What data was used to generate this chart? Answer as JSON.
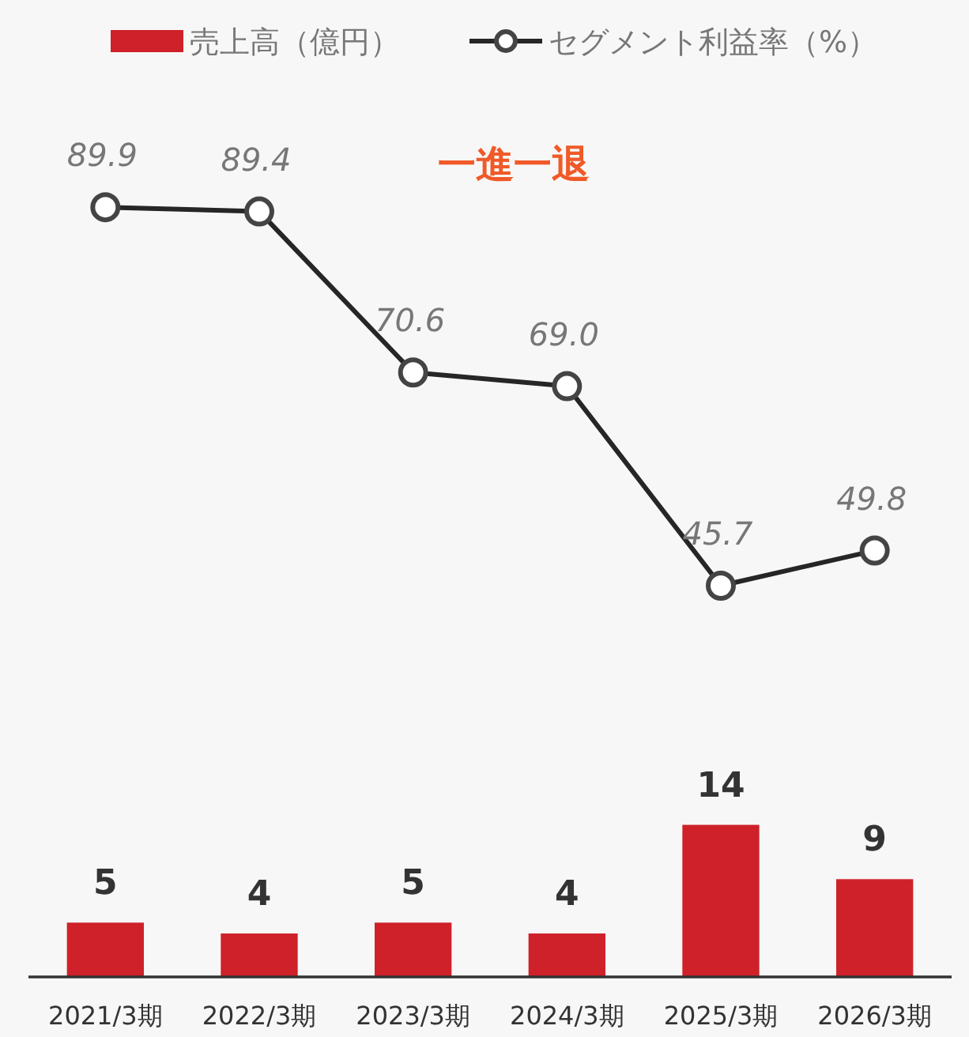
{
  "chart_data": [
    {
      "type": "bar",
      "categories": [
        "2021/3期",
        "2022/3期",
        "2023/3期",
        "2024/3期",
        "2025/3期",
        "2026/3期"
      ],
      "series": [
        {
          "name": "売上高（億円）",
          "color": "#cf2129",
          "values": [
            5,
            4,
            5,
            4,
            14,
            9
          ]
        }
      ],
      "data_labels": true,
      "legend": "top"
    },
    {
      "type": "line",
      "series": [
        {
          "name": "セグメント利益率（%）",
          "color": "#262626",
          "values": [
            89.9,
            89.4,
            70.6,
            69.0,
            45.7,
            49.8
          ],
          "value_labels": [
            "89.9",
            "89.4",
            "70.6",
            "69.0",
            "45.7",
            "49.8"
          ]
        }
      ],
      "marker": "circle",
      "data_labels": true,
      "legend": "top",
      "annotations": [
        "一進一退"
      ]
    }
  ]
}
